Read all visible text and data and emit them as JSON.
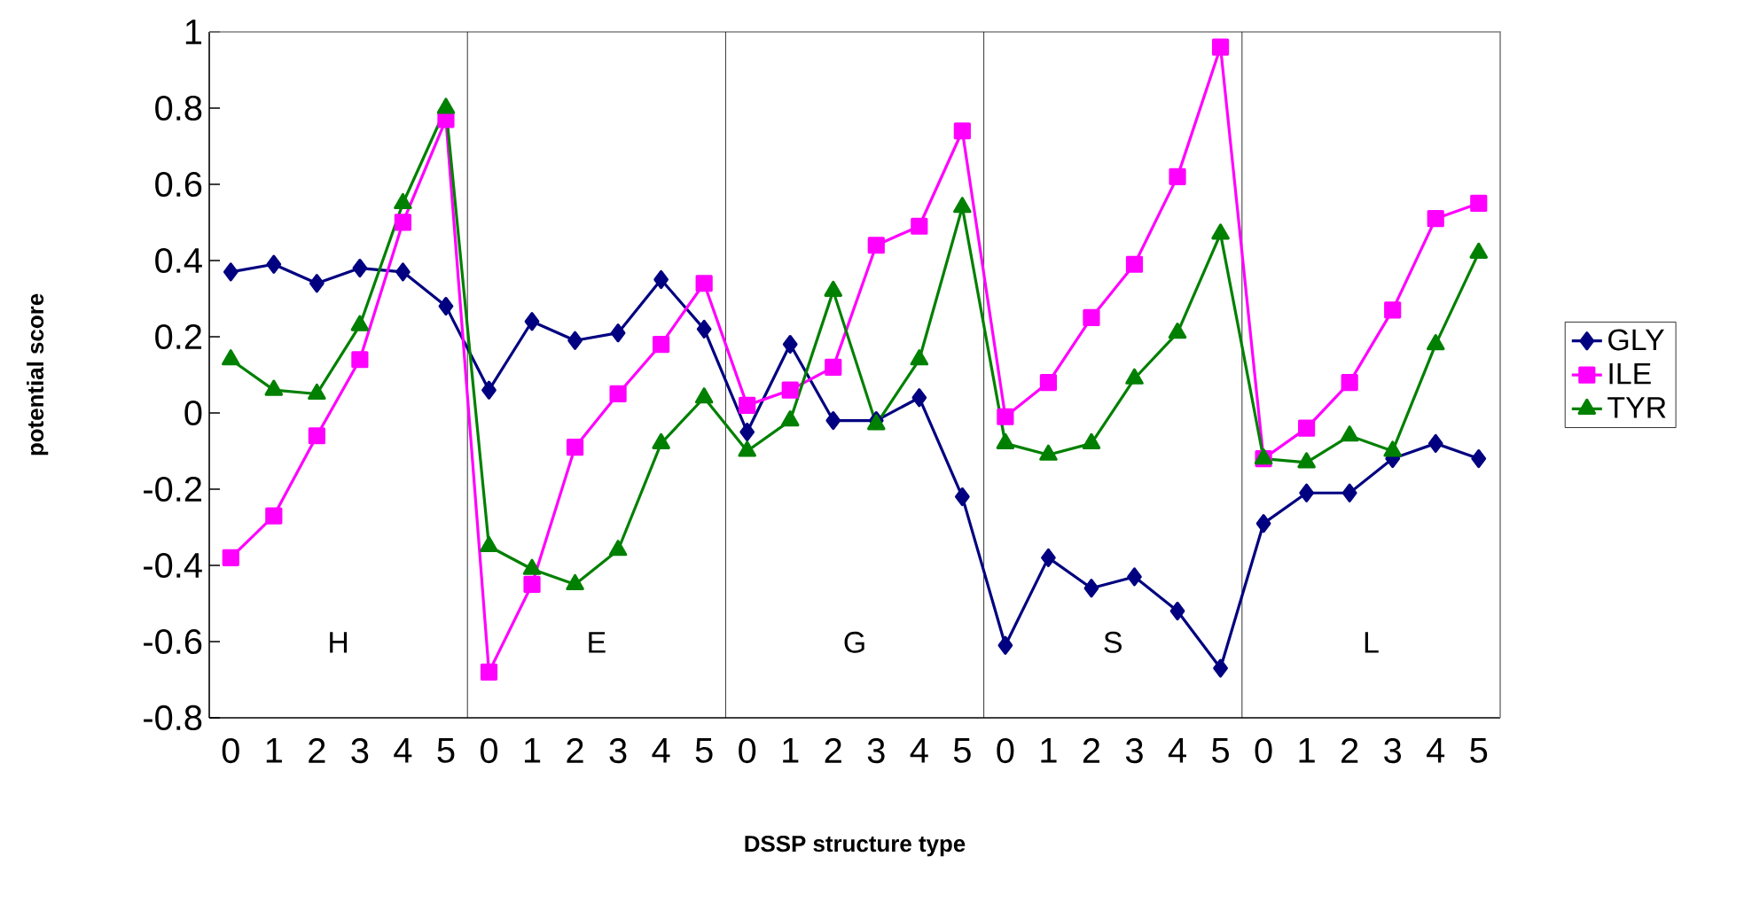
{
  "chart_data": {
    "type": "line",
    "xlabel": "DSSP structure type",
    "ylabel": "potential score",
    "categories": [
      "0",
      "1",
      "2",
      "3",
      "4",
      "5",
      "0",
      "1",
      "2",
      "3",
      "4",
      "5",
      "0",
      "1",
      "2",
      "3",
      "4",
      "5",
      "0",
      "1",
      "2",
      "3",
      "4",
      "5",
      "0",
      "1",
      "2",
      "3",
      "4",
      "5"
    ],
    "series": [
      {
        "name": "GLY",
        "color": "#000080",
        "marker": "diamond",
        "values": [
          0.37,
          0.39,
          0.34,
          0.38,
          0.37,
          0.28,
          0.06,
          0.24,
          0.19,
          0.21,
          0.35,
          0.22,
          -0.05,
          0.18,
          -0.02,
          -0.02,
          0.04,
          -0.22,
          -0.61,
          -0.38,
          -0.46,
          -0.43,
          -0.52,
          -0.67,
          -0.29,
          -0.21,
          -0.21,
          -0.12,
          -0.08,
          -0.12
        ]
      },
      {
        "name": "ILE",
        "color": "#ff00ff",
        "marker": "square",
        "values": [
          -0.38,
          -0.27,
          -0.06,
          0.14,
          0.5,
          0.77,
          -0.68,
          -0.45,
          -0.09,
          0.05,
          0.18,
          0.34,
          0.02,
          0.06,
          0.12,
          0.44,
          0.49,
          0.74,
          -0.01,
          0.08,
          0.25,
          0.39,
          0.62,
          0.96,
          -0.12,
          -0.04,
          0.08,
          0.27,
          0.51,
          0.55
        ]
      },
      {
        "name": "TYR",
        "color": "#008000",
        "marker": "triangle",
        "values": [
          0.14,
          0.06,
          0.05,
          0.23,
          0.55,
          0.8,
          -0.35,
          -0.41,
          -0.45,
          -0.36,
          -0.08,
          0.04,
          -0.1,
          -0.02,
          0.32,
          -0.03,
          0.14,
          0.54,
          -0.08,
          -0.11,
          -0.08,
          0.09,
          0.21,
          0.47,
          -0.12,
          -0.13,
          -0.06,
          -0.1,
          0.18,
          0.42
        ]
      }
    ],
    "annotations": [
      "H",
      "E",
      "G",
      "S",
      "L"
    ],
    "ylim": [
      -0.8,
      1
    ],
    "yticks": [
      -0.8,
      -0.6,
      -0.4,
      -0.2,
      0,
      0.2,
      0.4,
      0.6,
      0.8,
      1
    ],
    "grid": false,
    "legend": "right",
    "line_style": "solid"
  }
}
